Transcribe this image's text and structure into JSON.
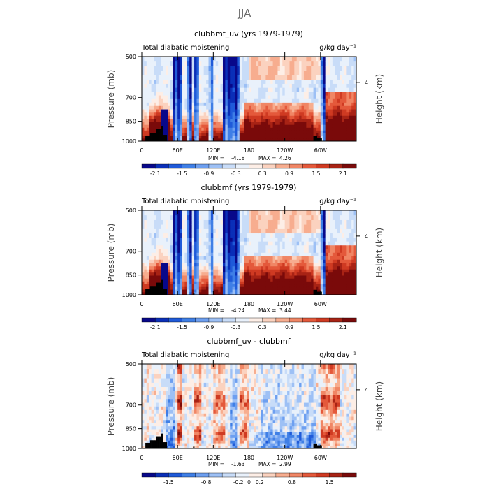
{
  "figure_title": "JJA",
  "chart_data": [
    {
      "type": "heatmap",
      "title": "clubbmf_uv (yrs 1979-1979)",
      "left_label": "Total diabatic moistening",
      "right_label": "g/kg day⁻¹",
      "ylabel": "Pressure (mb)",
      "ylabel_right": "Height (km)",
      "x_ticks": [
        "0",
        "60E",
        "120E",
        "180",
        "120W",
        "60W"
      ],
      "x_tick_values": [
        0,
        60,
        120,
        180,
        240,
        300
      ],
      "xlim": [
        0,
        360
      ],
      "y_ticks": [
        "500",
        "700",
        "850",
        "1000"
      ],
      "y_tick_values": [
        500,
        700,
        850,
        1000
      ],
      "ylim": [
        1000,
        500
      ],
      "right_ticks": [
        "4"
      ],
      "right_tick_values": [
        4
      ],
      "min_label": "MIN = ",
      "min": "-4.18",
      "max_label": "MAX = ",
      "max": "4.26",
      "colorbar_ticks": [
        "-2.1",
        "-1.5",
        "-0.9",
        "-0.3",
        "0.3",
        "0.9",
        "1.5",
        "2.1"
      ],
      "colorbar_tick_levels": [
        -2.1,
        -1.5,
        -0.9,
        -0.3,
        0.3,
        0.9,
        1.5,
        2.1
      ],
      "colorbar_range": [
        -2.4,
        2.4
      ],
      "pattern": "full"
    },
    {
      "type": "heatmap",
      "title": "clubbmf (yrs 1979-1979)",
      "left_label": "Total diabatic moistening",
      "right_label": "g/kg day⁻¹",
      "ylabel": "Pressure (mb)",
      "ylabel_right": "Height (km)",
      "x_ticks": [
        "0",
        "60E",
        "120E",
        "180",
        "120W",
        "60W"
      ],
      "x_tick_values": [
        0,
        60,
        120,
        180,
        240,
        300
      ],
      "xlim": [
        0,
        360
      ],
      "y_ticks": [
        "500",
        "700",
        "850",
        "1000"
      ],
      "y_tick_values": [
        500,
        700,
        850,
        1000
      ],
      "ylim": [
        1000,
        500
      ],
      "right_ticks": [
        "4"
      ],
      "right_tick_values": [
        4
      ],
      "min_label": "MIN = ",
      "min": "-4.24",
      "max_label": "MAX = ",
      "max": "3.44",
      "colorbar_ticks": [
        "-2.1",
        "-1.5",
        "-0.9",
        "-0.3",
        "0.3",
        "0.9",
        "1.5",
        "2.1"
      ],
      "colorbar_tick_levels": [
        -2.1,
        -1.5,
        -0.9,
        -0.3,
        0.3,
        0.9,
        1.5,
        2.1
      ],
      "colorbar_range": [
        -2.4,
        2.4
      ],
      "pattern": "full"
    },
    {
      "type": "heatmap",
      "title": "clubbmf_uv - clubbmf",
      "left_label": "Total diabatic moistening",
      "right_label": "g/kg day⁻¹",
      "ylabel": "Pressure (mb)",
      "ylabel_right": "Height (km)",
      "x_ticks": [
        "0",
        "60E",
        "120E",
        "180",
        "120W",
        "60W"
      ],
      "x_tick_values": [
        0,
        60,
        120,
        180,
        240,
        300
      ],
      "xlim": [
        0,
        360
      ],
      "y_ticks": [
        "500",
        "700",
        "850",
        "1000"
      ],
      "y_tick_values": [
        500,
        700,
        850,
        1000
      ],
      "ylim": [
        1000,
        500
      ],
      "right_ticks": [
        "4"
      ],
      "right_tick_values": [
        4
      ],
      "min_label": "MIN = ",
      "min": "-1.63",
      "max_label": "MAX = ",
      "max": "2.99",
      "colorbar_ticks": [
        "-1.5",
        "-0.8",
        "-0.2",
        "0",
        "0.2",
        "0.8",
        "1.5"
      ],
      "colorbar_tick_levels": [
        -1.5,
        -0.8,
        -0.2,
        0,
        0.2,
        0.8,
        1.5
      ],
      "colorbar_range": [
        -2.0,
        2.0
      ],
      "pattern": "diff"
    }
  ],
  "colormap": [
    "#08088a",
    "#0a2fb8",
    "#1f5ad9",
    "#3f7fe6",
    "#6d9ff0",
    "#9dc0f5",
    "#c8dcf8",
    "#e9f1fb",
    "#fdeee6",
    "#fbd2bf",
    "#f7ad8f",
    "#f08665",
    "#e4593b",
    "#cf3a22",
    "#a82315",
    "#7a0a0a"
  ],
  "terrain_color": "#000000"
}
